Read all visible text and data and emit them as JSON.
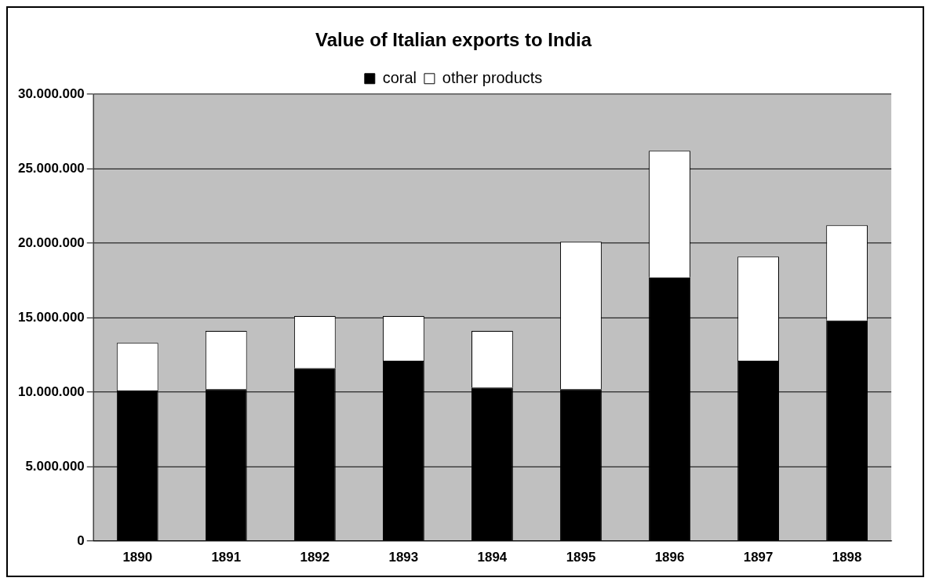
{
  "chart_data": {
    "type": "bar",
    "title": "Value of Italian exports to India",
    "stacked": true,
    "categories": [
      "1890",
      "1891",
      "1892",
      "1893",
      "1894",
      "1895",
      "1896",
      "1897",
      "1898"
    ],
    "series": [
      {
        "name": "coral",
        "color": "#000000",
        "values": [
          10100000,
          10200000,
          11600000,
          12100000,
          10300000,
          10200000,
          17700000,
          12100000,
          14800000
        ]
      },
      {
        "name": "other products",
        "color": "#ffffff",
        "values": [
          3200000,
          3900000,
          3500000,
          3000000,
          3800000,
          9900000,
          8500000,
          7000000,
          6400000
        ]
      }
    ],
    "ylim": [
      0,
      30000000
    ],
    "yticks": [
      {
        "value": 0,
        "label": "0"
      },
      {
        "value": 5000000,
        "label": "5.000.000"
      },
      {
        "value": 10000000,
        "label": "10.000.000"
      },
      {
        "value": 15000000,
        "label": "15.000.000"
      },
      {
        "value": 20000000,
        "label": "20.000.000"
      },
      {
        "value": 25000000,
        "label": "25.000.000"
      },
      {
        "value": 30000000,
        "label": "30.000.000"
      }
    ],
    "grid": "y",
    "legend": "top"
  }
}
